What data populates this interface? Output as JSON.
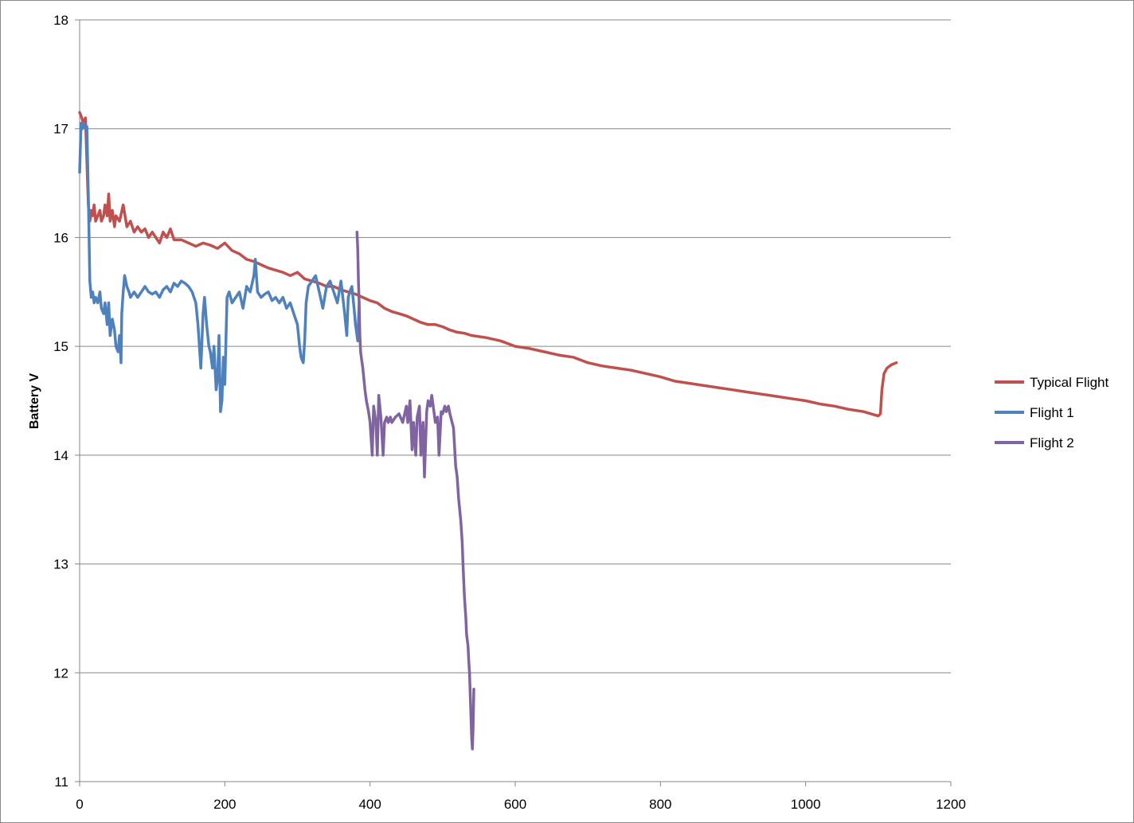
{
  "chart_data": {
    "type": "line",
    "title": "",
    "xlabel": "",
    "ylabel": "Battery V",
    "xlim": [
      0,
      1200
    ],
    "ylim": [
      11,
      18
    ],
    "x_ticks": [
      "0",
      "200",
      "400",
      "600",
      "800",
      "1000",
      "1200"
    ],
    "y_ticks": [
      "11",
      "12",
      "13",
      "14",
      "15",
      "16",
      "17",
      "18"
    ],
    "grid": "horizontal",
    "legend_position": "right",
    "series": [
      {
        "name": "Typical Flight",
        "color": "#C0504D",
        "x": [
          0,
          3,
          5,
          8,
          10,
          12,
          14,
          16,
          18,
          20,
          22,
          25,
          28,
          30,
          33,
          35,
          38,
          40,
          42,
          45,
          48,
          50,
          55,
          60,
          65,
          70,
          75,
          80,
          85,
          90,
          95,
          100,
          105,
          110,
          115,
          120,
          125,
          130,
          140,
          150,
          160,
          170,
          180,
          190,
          200,
          210,
          220,
          230,
          240,
          250,
          260,
          270,
          280,
          290,
          300,
          310,
          320,
          330,
          340,
          350,
          360,
          370,
          380,
          390,
          400,
          410,
          420,
          430,
          440,
          450,
          460,
          470,
          480,
          490,
          500,
          510,
          520,
          530,
          540,
          560,
          580,
          600,
          620,
          640,
          660,
          680,
          700,
          720,
          740,
          760,
          780,
          800,
          820,
          840,
          860,
          880,
          900,
          920,
          940,
          960,
          980,
          1000,
          1020,
          1040,
          1060,
          1080,
          1090,
          1100,
          1103,
          1105,
          1108,
          1112,
          1118,
          1125
        ],
        "values": [
          17.15,
          17.1,
          17.05,
          17.1,
          16.7,
          16.3,
          16.15,
          16.25,
          16.2,
          16.3,
          16.15,
          16.2,
          16.25,
          16.15,
          16.2,
          16.3,
          16.2,
          16.4,
          16.15,
          16.25,
          16.1,
          16.2,
          16.15,
          16.3,
          16.1,
          16.15,
          16.05,
          16.1,
          16.05,
          16.08,
          16.0,
          16.05,
          16.0,
          15.95,
          16.05,
          16.0,
          16.08,
          15.98,
          15.98,
          15.95,
          15.92,
          15.95,
          15.93,
          15.9,
          15.95,
          15.88,
          15.85,
          15.8,
          15.78,
          15.75,
          15.72,
          15.7,
          15.68,
          15.65,
          15.68,
          15.62,
          15.6,
          15.58,
          15.55,
          15.55,
          15.52,
          15.5,
          15.48,
          15.45,
          15.42,
          15.4,
          15.35,
          15.32,
          15.3,
          15.28,
          15.25,
          15.22,
          15.2,
          15.2,
          15.18,
          15.15,
          15.13,
          15.12,
          15.1,
          15.08,
          15.05,
          15.0,
          14.98,
          14.95,
          14.92,
          14.9,
          14.85,
          14.82,
          14.8,
          14.78,
          14.75,
          14.72,
          14.68,
          14.66,
          14.64,
          14.62,
          14.6,
          14.58,
          14.56,
          14.54,
          14.52,
          14.5,
          14.47,
          14.45,
          14.42,
          14.4,
          14.38,
          14.36,
          14.38,
          14.6,
          14.75,
          14.8,
          14.83,
          14.85
        ]
      },
      {
        "name": "Flight 1",
        "color": "#4F81BD",
        "x": [
          0,
          2,
          4,
          6,
          8,
          10,
          12,
          14,
          16,
          18,
          20,
          22,
          25,
          28,
          30,
          33,
          35,
          38,
          40,
          42,
          45,
          48,
          50,
          53,
          55,
          57,
          58,
          60,
          62,
          65,
          68,
          70,
          75,
          80,
          85,
          90,
          95,
          100,
          105,
          110,
          115,
          120,
          125,
          130,
          135,
          140,
          145,
          150,
          155,
          160,
          163,
          165,
          167,
          170,
          172,
          175,
          178,
          180,
          183,
          185,
          188,
          190,
          192,
          194,
          196,
          198,
          200,
          203,
          206,
          210,
          215,
          220,
          225,
          230,
          235,
          240,
          242,
          245,
          250,
          255,
          260,
          265,
          270,
          275,
          280,
          285,
          290,
          295,
          300,
          303,
          305,
          308,
          310,
          312,
          315,
          320,
          325,
          330,
          335,
          340,
          345,
          350,
          355,
          360,
          365,
          368,
          370,
          372,
          375,
          378,
          380,
          383,
          385
        ],
        "values": [
          16.6,
          17.05,
          17.0,
          17.05,
          17.0,
          17.02,
          16.4,
          15.6,
          15.45,
          15.5,
          15.4,
          15.45,
          15.4,
          15.5,
          15.35,
          15.3,
          15.4,
          15.2,
          15.4,
          15.1,
          15.25,
          15.15,
          15.0,
          14.95,
          15.1,
          14.85,
          15.3,
          15.5,
          15.65,
          15.55,
          15.5,
          15.45,
          15.5,
          15.45,
          15.5,
          15.55,
          15.5,
          15.48,
          15.5,
          15.45,
          15.52,
          15.55,
          15.5,
          15.58,
          15.55,
          15.6,
          15.58,
          15.55,
          15.5,
          15.4,
          15.2,
          15.0,
          14.8,
          15.3,
          15.45,
          15.2,
          15.0,
          14.95,
          14.8,
          15.0,
          14.6,
          14.7,
          15.1,
          14.4,
          14.5,
          14.9,
          14.65,
          15.45,
          15.5,
          15.4,
          15.45,
          15.5,
          15.35,
          15.55,
          15.5,
          15.65,
          15.8,
          15.5,
          15.45,
          15.48,
          15.5,
          15.42,
          15.45,
          15.4,
          15.45,
          15.35,
          15.4,
          15.3,
          15.2,
          15.0,
          14.9,
          14.85,
          15.05,
          15.4,
          15.55,
          15.6,
          15.65,
          15.5,
          15.35,
          15.55,
          15.6,
          15.5,
          15.4,
          15.6,
          15.3,
          15.1,
          15.45,
          15.5,
          15.55,
          15.35,
          15.2,
          15.05,
          15.4
        ]
      },
      {
        "name": "Flight 2",
        "color": "#8064A2",
        "x": [
          382,
          383,
          384,
          385,
          386,
          387,
          388,
          390,
          393,
          395,
          398,
          400,
          403,
          405,
          408,
          410,
          412,
          415,
          418,
          420,
          423,
          425,
          428,
          430,
          435,
          440,
          445,
          450,
          452,
          455,
          458,
          460,
          463,
          465,
          468,
          470,
          473,
          475,
          478,
          480,
          483,
          485,
          488,
          490,
          493,
          495,
          498,
          500,
          503,
          505,
          508,
          510,
          513,
          515,
          518,
          520,
          522,
          525,
          527,
          528,
          530,
          532,
          533,
          535,
          536,
          537,
          538,
          539,
          540,
          541,
          542,
          543
        ],
        "values": [
          16.05,
          15.9,
          15.6,
          15.4,
          15.1,
          14.95,
          14.9,
          14.8,
          14.6,
          14.5,
          14.4,
          14.3,
          14.0,
          14.45,
          14.3,
          14.0,
          14.55,
          14.35,
          14.0,
          14.3,
          14.35,
          14.3,
          14.35,
          14.3,
          14.35,
          14.38,
          14.3,
          14.45,
          14.3,
          14.5,
          14.05,
          14.3,
          14.0,
          14.35,
          14.45,
          14.0,
          14.3,
          13.8,
          14.4,
          14.5,
          14.45,
          14.55,
          14.4,
          14.3,
          14.35,
          14.0,
          14.4,
          14.38,
          14.45,
          14.4,
          14.45,
          14.38,
          14.3,
          14.25,
          13.9,
          13.8,
          13.6,
          13.4,
          13.2,
          13.0,
          12.7,
          12.5,
          12.35,
          12.25,
          12.1,
          12.0,
          11.8,
          11.6,
          11.4,
          11.3,
          11.5,
          11.85
        ]
      }
    ]
  }
}
